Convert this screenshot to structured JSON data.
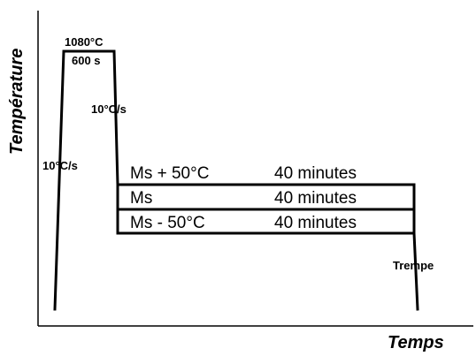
{
  "axes": {
    "y_label": "Température",
    "x_label": "Temps"
  },
  "austenitization": {
    "temperature": "1080°C",
    "duration": "600 s"
  },
  "heating_rate": "10°C/s",
  "cooling_rate": "10°C/s",
  "holds": [
    {
      "temperature": "Ms + 50°C",
      "duration": "40 minutes"
    },
    {
      "temperature": "Ms",
      "duration": "40 minutes"
    },
    {
      "temperature": "Ms - 50°C",
      "duration": "40 minutes"
    }
  ],
  "quench_label": "Trempe"
}
